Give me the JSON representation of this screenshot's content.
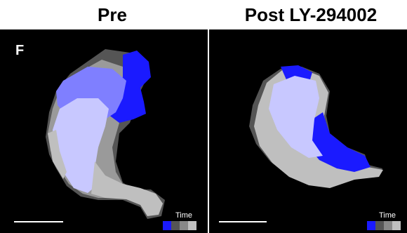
{
  "header": {
    "titles": [
      "Pre",
      "Post LY-294002"
    ]
  },
  "panel_label": "F",
  "panels": [
    {
      "legend_title": "Time"
    },
    {
      "legend_title": "Time"
    }
  ]
}
